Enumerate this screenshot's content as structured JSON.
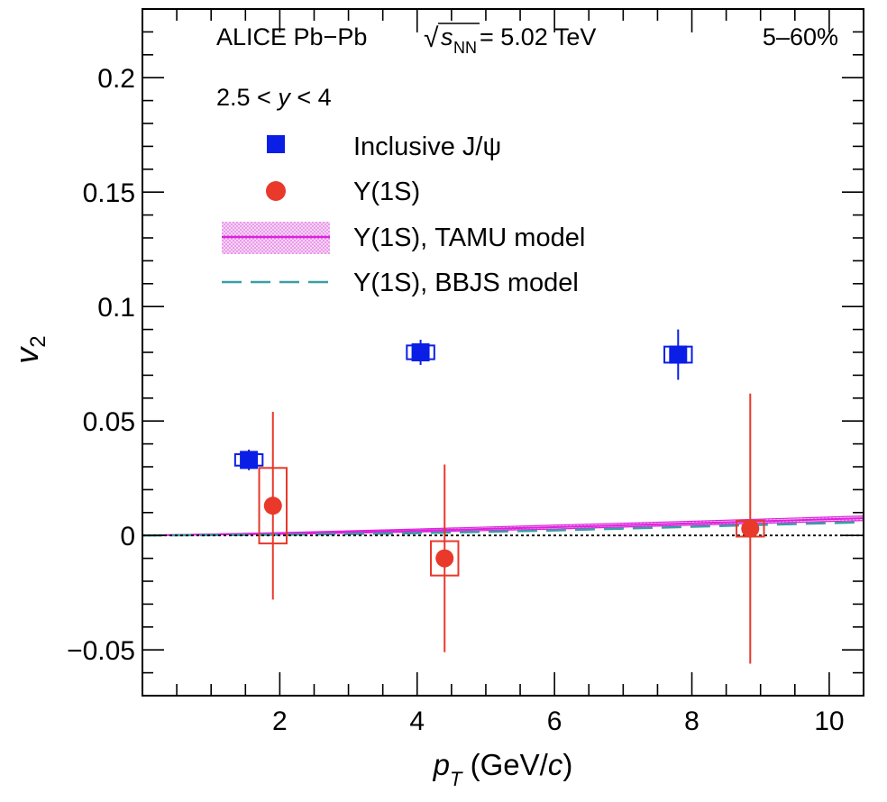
{
  "chart_data": {
    "type": "scatter",
    "xlabel": "p_T (GeV/c)",
    "xlabel_parts": {
      "main": "p",
      "sub": "T",
      "unit_open": " (GeV/",
      "unit_var": "c",
      "unit_close": ")"
    },
    "ylabel": "v_2",
    "ylabel_parts": {
      "main": "v",
      "sub": "2"
    },
    "xlim": [
      0.0,
      10.5
    ],
    "ylim": [
      -0.07,
      0.23
    ],
    "x_ticks": [
      2,
      4,
      6,
      8,
      10
    ],
    "x_tick_labels": [
      "2",
      "4",
      "6",
      "8",
      "10"
    ],
    "y_ticks": [
      -0.05,
      0,
      0.05,
      0.1,
      0.15,
      0.2
    ],
    "y_tick_labels": [
      "−0.05",
      "0",
      "0.05",
      "0.1",
      "0.15",
      "0.2"
    ],
    "annotations": {
      "experiment": "ALICE Pb−Pb",
      "sqrt_symbol": "√",
      "energy_var": "s",
      "energy_sub": "NN",
      "energy_value": " = 5.02 TeV",
      "centrality": "5–60%",
      "rapidity_left": "2.5 < ",
      "rapidity_var": "y",
      "rapidity_right": " < 4"
    },
    "legend_position": "upper-center",
    "legend": [
      {
        "label": "Inclusive J/ψ",
        "marker": "square",
        "color": "#0a1ee6"
      },
      {
        "label": "Υ(1S)",
        "marker": "circle",
        "color": "#e8392b"
      },
      {
        "label": "Υ(1S), TAMU model",
        "marker": "band",
        "color": "#dd22dd"
      },
      {
        "label": "Υ(1S), BBJS model",
        "marker": "dashed",
        "color": "#3a9ea5"
      }
    ],
    "series": [
      {
        "name": "Inclusive J/ψ",
        "color": "#0a1ee6",
        "marker": "square",
        "points": [
          {
            "x": 1.55,
            "y": 0.033,
            "stat": 0.0045,
            "sys": 0.0025,
            "sys_half_width": 0.2
          },
          {
            "x": 4.05,
            "y": 0.08,
            "stat": 0.0055,
            "sys": 0.003,
            "sys_half_width": 0.2
          },
          {
            "x": 7.8,
            "y": 0.079,
            "stat": 0.011,
            "sys": 0.0035,
            "sys_half_width": 0.2
          }
        ]
      },
      {
        "name": "Υ(1S)",
        "color": "#e8392b",
        "marker": "circle",
        "points": [
          {
            "x": 1.9,
            "y": 0.013,
            "stat": 0.041,
            "sys": 0.0165,
            "sys_half_width": 0.2
          },
          {
            "x": 4.4,
            "y": -0.01,
            "stat": 0.041,
            "sys": 0.0075,
            "sys_half_width": 0.2
          },
          {
            "x": 8.85,
            "y": 0.003,
            "stat": 0.059,
            "sys": 0.0035,
            "sys_half_width": 0.2
          }
        ]
      },
      {
        "name": "Υ(1S), TAMU model",
        "color": "#dd22dd",
        "style": "band",
        "x": [
          0.0,
          2.0,
          4.0,
          6.0,
          8.0,
          10.5
        ],
        "y_low": [
          0.0,
          0.0005,
          0.0015,
          0.0028,
          0.0045,
          0.0065
        ],
        "y_high": [
          0.0,
          0.0012,
          0.0028,
          0.0045,
          0.0062,
          0.0085
        ],
        "y_center": [
          0.0,
          0.0009,
          0.0021,
          0.0036,
          0.0053,
          0.0075
        ]
      },
      {
        "name": "Υ(1S), BBJS model",
        "color": "#3a9ea5",
        "style": "dashed",
        "x": [
          0.0,
          2.0,
          4.0,
          6.0,
          8.0,
          10.5
        ],
        "y": [
          0.0,
          0.0003,
          0.001,
          0.0022,
          0.0038,
          0.0058
        ]
      },
      {
        "name": "zero-line",
        "color": "#000000",
        "style": "dotted",
        "x": [
          0.0,
          10.5
        ],
        "y": [
          0.0,
          0.0
        ]
      }
    ]
  }
}
